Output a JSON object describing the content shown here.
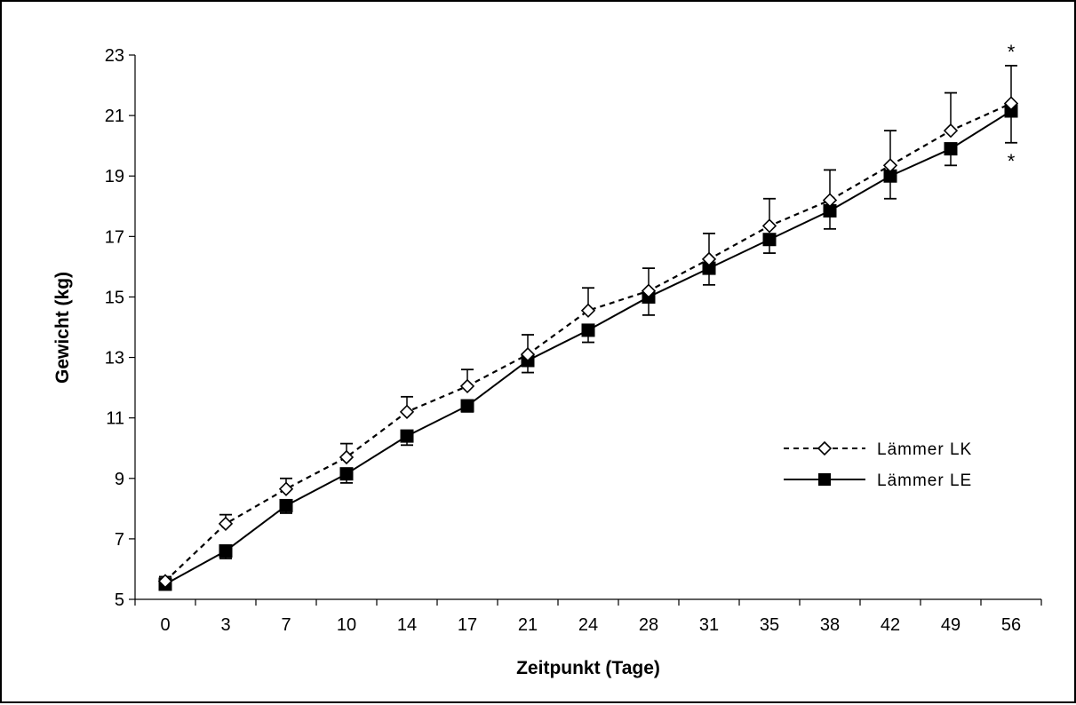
{
  "chart_data": {
    "type": "line",
    "xlabel": "Zeitpunkt (Tage)",
    "ylabel": "Gewicht (kg)",
    "categories": [
      "0",
      "3",
      "7",
      "10",
      "14",
      "17",
      "21",
      "24",
      "28",
      "31",
      "35",
      "38",
      "42",
      "49",
      "56"
    ],
    "ylim": [
      5,
      23
    ],
    "yticks": [
      5,
      7,
      9,
      11,
      13,
      15,
      17,
      19,
      21,
      23
    ],
    "grid": false,
    "legend_position": "right",
    "series": [
      {
        "name": "Lämmer LK",
        "marker": "diamond-open",
        "line_style": "dashed",
        "values": [
          5.6,
          7.5,
          8.65,
          9.7,
          11.2,
          12.05,
          13.1,
          14.55,
          15.2,
          16.25,
          17.35,
          18.2,
          19.35,
          20.5,
          21.4
        ],
        "error": [
          0.15,
          0.3,
          0.35,
          0.45,
          0.5,
          0.55,
          0.65,
          0.75,
          0.75,
          0.85,
          0.9,
          1.0,
          1.15,
          1.25,
          1.25
        ]
      },
      {
        "name": "Lämmer LE",
        "marker": "square-filled",
        "line_style": "solid",
        "values": [
          5.5,
          6.6,
          8.1,
          9.15,
          10.4,
          11.4,
          12.9,
          13.9,
          15.0,
          15.95,
          16.9,
          17.85,
          19.0,
          19.9,
          21.15
        ],
        "error": [
          0.15,
          0.25,
          0.25,
          0.3,
          0.3,
          0.2,
          0.4,
          0.4,
          0.6,
          0.55,
          0.45,
          0.6,
          0.75,
          0.55,
          1.05
        ]
      }
    ],
    "annotations": [
      {
        "text": "*",
        "category_index": 14,
        "position": "above"
      },
      {
        "text": "*",
        "category_index": 14,
        "position": "below"
      }
    ],
    "colors": {
      "line": "#000000",
      "background": "#ffffff"
    }
  }
}
